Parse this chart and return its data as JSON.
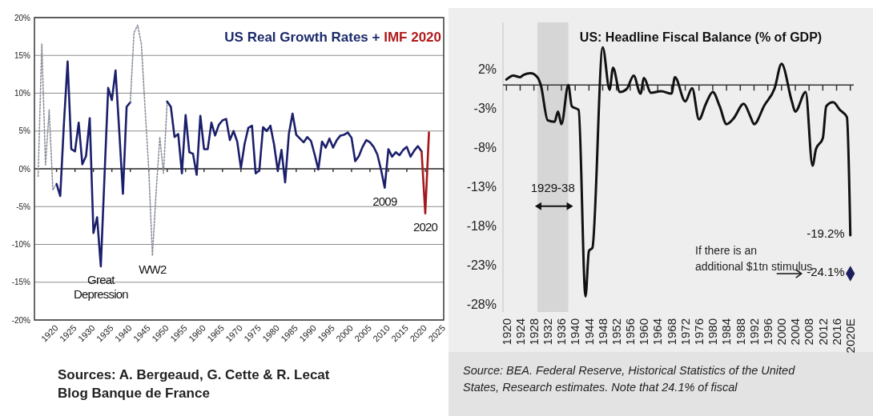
{
  "chart_data": [
    {
      "type": "line",
      "title": "US Real Growth Rates +",
      "subtitle": "IMF 2020",
      "xlim": [
        1914,
        2025
      ],
      "xticks": [
        1920,
        1925,
        1930,
        1935,
        1940,
        1945,
        1950,
        1955,
        1960,
        1965,
        1970,
        1975,
        1980,
        1985,
        1990,
        1995,
        2000,
        2005,
        2010,
        2015,
        2020,
        2025
      ],
      "ylim": [
        -20,
        20
      ],
      "yticks": [
        {
          "value": -20,
          "label": "-20%"
        },
        {
          "value": -15,
          "label": "-15%"
        },
        {
          "value": -10,
          "label": "-10%"
        },
        {
          "value": -5,
          "label": "-5%"
        },
        {
          "value": 0,
          "label": "0%"
        },
        {
          "value": 5,
          "label": "5%"
        },
        {
          "value": 10,
          "label": "10%"
        },
        {
          "value": 15,
          "label": "15%"
        },
        {
          "value": 20,
          "label": "20%"
        }
      ],
      "grid": "y",
      "series": [
        {
          "color": "#8a8f99",
          "line_style": "dotted",
          "x": [
            1915,
            1916,
            1917,
            1918,
            1919,
            1920
          ],
          "values": [
            -1,
            16.5,
            0.5,
            7.8,
            -2.8,
            -2.0
          ]
        },
        {
          "color": "#1b1f6b",
          "line_style": "solid",
          "x": [
            1920,
            1921,
            1922,
            1923,
            1924,
            1925,
            1926,
            1927,
            1928,
            1929,
            1930,
            1931,
            1932,
            1933,
            1934,
            1935,
            1936,
            1937,
            1938,
            1939,
            1940
          ],
          "values": [
            -2.0,
            -3.6,
            6,
            14.2,
            2.6,
            2.3,
            6.1,
            0.6,
            1.7,
            6.7,
            -8.5,
            -6.4,
            -12.9,
            -1,
            10.7,
            9.1,
            13.0,
            5,
            -3.3,
            8.2,
            8.8
          ]
        },
        {
          "color": "#8a8f99",
          "line_style": "dotted",
          "x": [
            1940,
            1941,
            1942,
            1943,
            1944,
            1945,
            1946,
            1947,
            1948,
            1949,
            1950
          ],
          "values": [
            8.8,
            18.0,
            19.0,
            16.5,
            8,
            0,
            -11.5,
            -3.1,
            4.2,
            -0.6,
            8.9
          ]
        },
        {
          "color": "#1b1f6b",
          "line_style": "solid",
          "x": [
            1950,
            1951,
            1952,
            1953,
            1954,
            1955,
            1956,
            1957,
            1958,
            1959,
            1960,
            1961,
            1962,
            1963,
            1964,
            1965,
            1966,
            1967,
            1968,
            1969,
            1970,
            1971,
            1972,
            1973,
            1974,
            1975,
            1976,
            1977,
            1978,
            1979,
            1980,
            1981,
            1982,
            1983,
            1984,
            1985,
            1986,
            1987,
            1988,
            1989,
            1990,
            1991,
            1992,
            1993,
            1994,
            1995,
            1996,
            1997,
            1998,
            1999,
            2000,
            2001,
            2002,
            2003,
            2004,
            2005,
            2006,
            2007,
            2008,
            2009,
            2010,
            2011,
            2012,
            2013,
            2014,
            2015,
            2016,
            2017,
            2018,
            2019
          ],
          "values": [
            8.9,
            8.2,
            4.2,
            4.6,
            -0.6,
            7.1,
            2.2,
            2.0,
            -0.8,
            7.0,
            2.6,
            2.6,
            6.1,
            4.4,
            5.8,
            6.4,
            6.6,
            3.8,
            5.0,
            3.6,
            0.1,
            3.3,
            5.4,
            5.7,
            -0.6,
            -0.2,
            5.5,
            5.0,
            5.7,
            3.2,
            -0.3,
            2.5,
            -1.8,
            4.6,
            7.3,
            4.5,
            4.0,
            3.5,
            4.2,
            3.7,
            1.9,
            -0.1,
            3.6,
            2.8,
            4.0,
            2.8,
            3.8,
            4.4,
            4.5,
            4.8,
            4.1,
            1.0,
            1.7,
            2.9,
            3.8,
            3.5,
            2.9,
            1.9,
            -0.1,
            -2.5,
            2.6,
            1.6,
            2.2,
            1.8,
            2.5,
            2.9,
            1.6,
            2.4,
            3.0,
            2.3
          ]
        },
        {
          "color": "#a3191c",
          "line_style": "solid",
          "x": [
            2019,
            2020,
            2021
          ],
          "values": [
            2.3,
            -5.9,
            4.8
          ]
        }
      ],
      "annotations": [
        {
          "text": "Great Depression",
          "x": 1932,
          "y": -12.9
        },
        {
          "text": "WW2",
          "x": 1946,
          "y": -11.5
        },
        {
          "text": "2009",
          "x": 2009,
          "y": -2.5
        },
        {
          "text": "2020",
          "x": 2020,
          "y": -5.9
        },
        "Sources: A. Bergeaud, G. Cette & R. Lecat",
        "Blog Banque de France"
      ]
    },
    {
      "type": "line",
      "title": "US: Headline Fiscal Balance (% of GDP)",
      "xlim": [
        1919,
        2021
      ],
      "xticks": [
        1920,
        1924,
        1928,
        1932,
        1936,
        1940,
        1944,
        1948,
        1952,
        1956,
        1960,
        1964,
        1968,
        1972,
        1976,
        1980,
        1984,
        1988,
        1992,
        1996,
        2000,
        2004,
        2008,
        2012,
        2016,
        {
          "value": 2020,
          "label": "2020E"
        }
      ],
      "ylim": [
        -29,
        8
      ],
      "yticks": [
        {
          "value": 2,
          "label": "2%"
        },
        {
          "value": -3,
          "label": "-3%"
        },
        {
          "value": -8,
          "label": "-8%"
        },
        {
          "value": -13,
          "label": "-13%"
        },
        {
          "value": -18,
          "label": "-18%"
        },
        {
          "value": -23,
          "label": "-23%"
        },
        {
          "value": -28,
          "label": "-28%"
        }
      ],
      "bands": [
        {
          "axis": "x",
          "from": 1929,
          "to": 1938,
          "label": "1929-38",
          "color": "#d6d6d6"
        }
      ],
      "series": [
        {
          "color": "#111111",
          "x": [
            1920,
            1922,
            1924,
            1925,
            1927,
            1929,
            1930,
            1932,
            1934,
            1935,
            1936,
            1938,
            1939,
            1941,
            1943,
            1944,
            1945,
            1948,
            1950,
            1951,
            1953,
            1955,
            1957,
            1959,
            1960,
            1962,
            1965,
            1968,
            1969,
            1972,
            1974,
            1976,
            1978,
            1980,
            1982,
            1984,
            1986,
            1989,
            1991,
            1992,
            1995,
            1998,
            2000,
            2003,
            2004,
            2007,
            2009,
            2010,
            2012,
            2013,
            2015,
            2017,
            2019,
            2020
          ],
          "values": [
            0.7,
            1.2,
            1.0,
            1.3,
            1.5,
            1.0,
            0,
            -4.5,
            -4.7,
            -3.4,
            -5.0,
            0,
            -2.7,
            -3.2,
            -27.0,
            -21.2,
            -20.8,
            4.8,
            -0.6,
            2.2,
            -0.9,
            -0.5,
            1.2,
            -1.1,
            0.9,
            -1.0,
            -0.8,
            -1.1,
            1.0,
            -2.1,
            -0.4,
            -4.4,
            -2.4,
            -0.9,
            -2.7,
            -5.0,
            -4.3,
            -2.4,
            -4.1,
            -5.0,
            -2.6,
            -0.4,
            2.7,
            -2.1,
            -3.4,
            -0.9,
            -10.3,
            -8.2,
            -6.8,
            -2.7,
            -2.2,
            -3.2,
            -4.1,
            -19.2
          ]
        },
        {
          "type": "scatter",
          "marker": "diamond",
          "color": "#1b1f5e",
          "x": [
            2020
          ],
          "values": [
            -24.1
          ]
        }
      ],
      "annotations": [
        {
          "text": "-19.2%",
          "x": 2020,
          "y": -19.2
        },
        {
          "text": "-24.1%",
          "x": 2020,
          "y": -24.1
        },
        "If there is an additional $1tn stimulus",
        "Source: BEA. Federal Reserve, Historical Statistics of the United States, Research estimates. Note that 24.1% of fiscal"
      ]
    }
  ]
}
